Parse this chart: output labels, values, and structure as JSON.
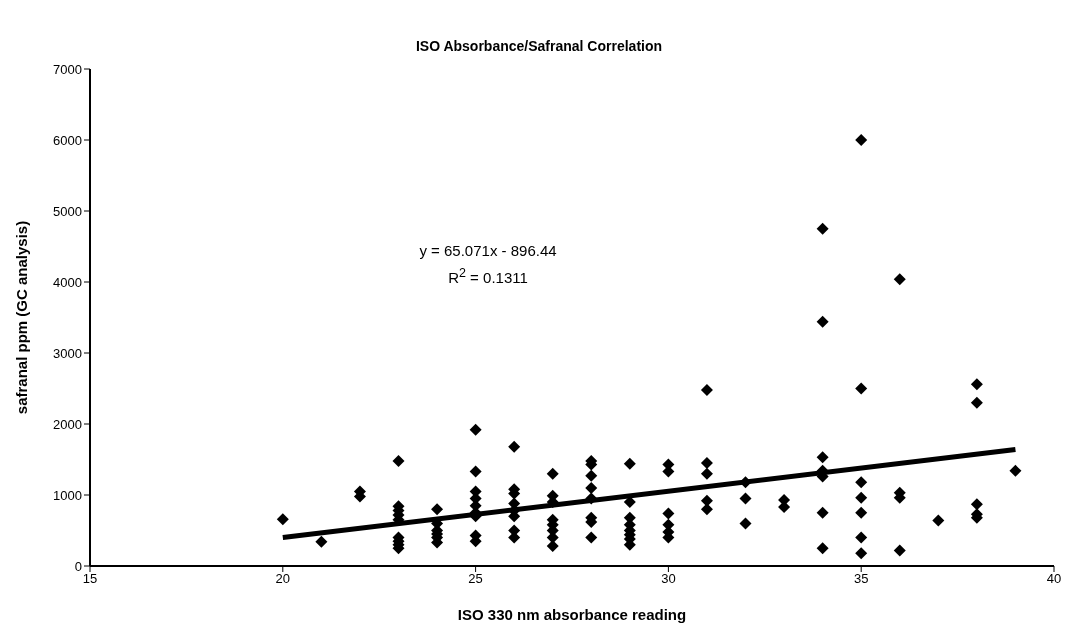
{
  "chart_data": {
    "type": "scatter",
    "title": "ISO Absorbance/Safranal Correlation",
    "xlabel": "ISO 330 nm absorbance reading",
    "ylabel": "safranal ppm (GC analysis)",
    "xlim": [
      15,
      40
    ],
    "xticks": [
      15,
      20,
      25,
      30,
      35,
      40
    ],
    "ylim": [
      0,
      7000
    ],
    "yticks": [
      0,
      1000,
      2000,
      3000,
      4000,
      5000,
      6000,
      7000
    ],
    "annotations": [
      "y = 65.071x - 896.44",
      "R$^{2}$ = 0.1311"
    ],
    "series": [
      {
        "marker": "diamond",
        "color": "#000000",
        "x": [
          20,
          21,
          22,
          22,
          23,
          23,
          23,
          23,
          23,
          23,
          23,
          23,
          23,
          24,
          24,
          24,
          24,
          24,
          24,
          25,
          25,
          25,
          25,
          25,
          25,
          25,
          25,
          25,
          26,
          26,
          26,
          26,
          26,
          26,
          26,
          26,
          27,
          27,
          27,
          27,
          27,
          27,
          27,
          27,
          28,
          28,
          28,
          28,
          28,
          28,
          28,
          28,
          29,
          29,
          29,
          29,
          29,
          29,
          29,
          29,
          30,
          30,
          30,
          30,
          30,
          30,
          31,
          31,
          31,
          31,
          31,
          32,
          32,
          32,
          33,
          33,
          34,
          34,
          34,
          34,
          34,
          34,
          34,
          35,
          35,
          35,
          35,
          35,
          35,
          35,
          36,
          36,
          36,
          36,
          37,
          38,
          38,
          38,
          38,
          38,
          39
        ],
        "values": [
          660,
          340,
          1050,
          980,
          1480,
          840,
          780,
          720,
          650,
          400,
          350,
          300,
          250,
          800,
          600,
          500,
          450,
          400,
          330,
          1920,
          1330,
          1050,
          950,
          850,
          750,
          700,
          430,
          350,
          1680,
          1080,
          1020,
          880,
          780,
          700,
          500,
          400,
          1300,
          990,
          900,
          650,
          580,
          500,
          400,
          280,
          1480,
          1430,
          1270,
          1100,
          950,
          680,
          620,
          400,
          1440,
          900,
          680,
          580,
          500,
          440,
          380,
          300,
          1430,
          1330,
          740,
          580,
          480,
          400,
          2480,
          1450,
          1300,
          920,
          800,
          1180,
          950,
          600,
          930,
          830,
          4750,
          3440,
          1530,
          1340,
          1260,
          750,
          250,
          6000,
          2500,
          1180,
          960,
          750,
          400,
          180,
          4040,
          1030,
          960,
          220,
          640,
          2560,
          2300,
          870,
          730,
          680,
          1340
        ]
      },
      {
        "type": "line",
        "marker": "none",
        "color": "#000000",
        "x": [
          20,
          39
        ],
        "values": [
          400,
          1640
        ]
      }
    ]
  }
}
